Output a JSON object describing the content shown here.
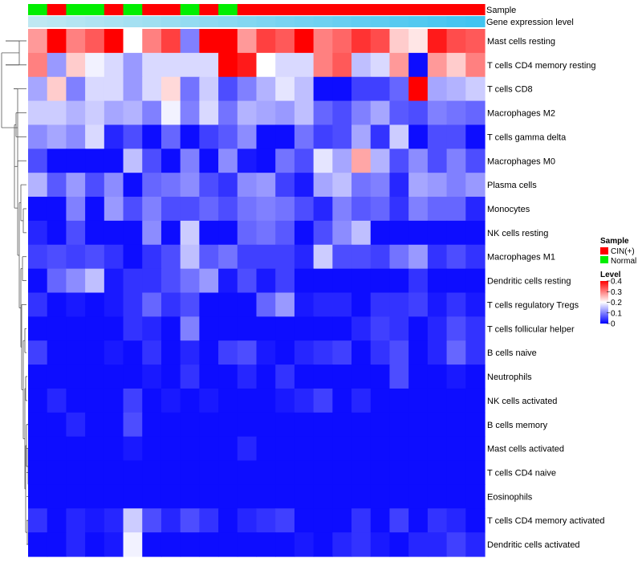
{
  "chart_data": {
    "type": "heatmap",
    "annotation_titles": {
      "sample": "Sample",
      "expression": "Gene expression level"
    },
    "sample_groups": [
      "Normal",
      "CIN(+)",
      "Normal",
      "Normal",
      "CIN(+)",
      "Normal",
      "CIN(+)",
      "CIN(+)",
      "Normal",
      "CIN(+)",
      "Normal",
      "CIN(+)",
      "CIN(+)",
      "CIN(+)",
      "CIN(+)",
      "CIN(+)",
      "CIN(+)",
      "CIN(+)",
      "CIN(+)",
      "CIN(+)",
      "CIN(+)",
      "CIN(+)",
      "CIN(+)",
      "CIN(+)"
    ],
    "expression_gradient": [
      0.0,
      0.04,
      0.09,
      0.13,
      0.17,
      0.22,
      0.26,
      0.3,
      0.35,
      0.39,
      0.43,
      0.48,
      0.52,
      0.57,
      0.61,
      0.65,
      0.7,
      0.74,
      0.78,
      0.83,
      0.87,
      0.91,
      0.96,
      1.0
    ],
    "rows": [
      "Mast cells resting",
      "T cells CD4 memory resting",
      "T cells CD8",
      "Macrophages M2",
      "T cells gamma delta",
      "Macrophages M0",
      "Plasma cells",
      "Monocytes",
      "NK cells resting",
      "Macrophages M1",
      "Dendritic cells resting",
      "T cells regulatory  Tregs",
      "T cells follicular helper",
      "B cells naive",
      "Neutrophils",
      "NK cells activated",
      "B cells memory",
      "Mast cells activated",
      "T cells CD4 naive",
      "Eosinophils",
      "T cells CD4 memory activated",
      "Dendritic cells activated"
    ],
    "values": [
      [
        0.28,
        0.4,
        0.3,
        0.33,
        0.4,
        0.2,
        0.3,
        0.35,
        0.1,
        0.4,
        0.4,
        0.28,
        0.35,
        0.33,
        0.4,
        0.3,
        0.32,
        0.36,
        0.34,
        0.24,
        0.22,
        0.38,
        0.34,
        0.33
      ],
      [
        0.3,
        0.12,
        0.24,
        0.19,
        0.17,
        0.12,
        0.17,
        0.17,
        0.17,
        0.17,
        0.4,
        0.38,
        0.2,
        0.17,
        0.17,
        0.3,
        0.33,
        0.15,
        0.17,
        0.28,
        0.01,
        0.28,
        0.24,
        0.3
      ],
      [
        0.13,
        0.24,
        0.1,
        0.17,
        0.17,
        0.12,
        0.17,
        0.23,
        0.09,
        0.16,
        0.06,
        0.1,
        0.14,
        0.18,
        0.15,
        0.01,
        0.01,
        0.05,
        0.05,
        0.08,
        0.4,
        0.13,
        0.14,
        0.16
      ],
      [
        0.16,
        0.16,
        0.14,
        0.16,
        0.13,
        0.14,
        0.1,
        0.19,
        0.1,
        0.17,
        0.09,
        0.14,
        0.13,
        0.12,
        0.15,
        0.08,
        0.06,
        0.1,
        0.13,
        0.07,
        0.06,
        0.1,
        0.09,
        0.08
      ],
      [
        0.11,
        0.13,
        0.11,
        0.17,
        0.03,
        0.06,
        0.01,
        0.08,
        0.01,
        0.05,
        0.07,
        0.11,
        0.01,
        0.01,
        0.09,
        0.05,
        0.06,
        0.13,
        0.04,
        0.16,
        0.01,
        0.06,
        0.06,
        0.01
      ],
      [
        0.06,
        0.01,
        0.01,
        0.01,
        0.01,
        0.15,
        0.06,
        0.01,
        0.1,
        0.01,
        0.11,
        0.02,
        0.01,
        0.09,
        0.06,
        0.18,
        0.13,
        0.27,
        0.14,
        0.06,
        0.11,
        0.06,
        0.1,
        0.06
      ],
      [
        0.14,
        0.07,
        0.12,
        0.06,
        0.11,
        0.01,
        0.08,
        0.09,
        0.11,
        0.06,
        0.04,
        0.11,
        0.12,
        0.05,
        0.02,
        0.13,
        0.15,
        0.09,
        0.1,
        0.03,
        0.13,
        0.12,
        0.1,
        0.12
      ],
      [
        0.01,
        0.01,
        0.1,
        0.01,
        0.12,
        0.06,
        0.1,
        0.06,
        0.06,
        0.08,
        0.06,
        0.09,
        0.1,
        0.09,
        0.06,
        0.03,
        0.1,
        0.07,
        0.08,
        0.04,
        0.1,
        0.08,
        0.08,
        0.03
      ],
      [
        0.03,
        0.01,
        0.06,
        0.01,
        0.01,
        0.01,
        0.11,
        0.01,
        0.16,
        0.01,
        0.01,
        0.08,
        0.09,
        0.07,
        0.01,
        0.06,
        0.11,
        0.15,
        0.01,
        0.01,
        0.01,
        0.01,
        0.01,
        0.01
      ],
      [
        0.05,
        0.06,
        0.05,
        0.06,
        0.04,
        0.01,
        0.04,
        0.06,
        0.15,
        0.07,
        0.09,
        0.05,
        0.05,
        0.05,
        0.03,
        0.16,
        0.06,
        0.06,
        0.05,
        0.09,
        0.12,
        0.04,
        0.06,
        0.04
      ],
      [
        0.01,
        0.08,
        0.11,
        0.15,
        0.02,
        0.04,
        0.04,
        0.06,
        0.09,
        0.12,
        0.02,
        0.06,
        0.02,
        0.05,
        0.01,
        0.01,
        0.01,
        0.01,
        0.01,
        0.01,
        0.04,
        0.01,
        0.01,
        0.01
      ],
      [
        0.04,
        0.01,
        0.02,
        0.01,
        0.02,
        0.04,
        0.08,
        0.04,
        0.06,
        0.01,
        0.01,
        0.01,
        0.08,
        0.12,
        0.02,
        0.03,
        0.03,
        0.01,
        0.04,
        0.04,
        0.05,
        0.02,
        0.04,
        0.02
      ],
      [
        0.01,
        0.01,
        0.01,
        0.01,
        0.01,
        0.04,
        0.03,
        0.01,
        0.1,
        0.01,
        0.01,
        0.01,
        0.01,
        0.01,
        0.01,
        0.01,
        0.01,
        0.03,
        0.05,
        0.04,
        0.01,
        0.03,
        0.06,
        0.04
      ],
      [
        0.05,
        0.01,
        0.01,
        0.01,
        0.02,
        0.01,
        0.04,
        0.01,
        0.03,
        0.01,
        0.05,
        0.06,
        0.02,
        0.01,
        0.03,
        0.04,
        0.05,
        0.01,
        0.04,
        0.06,
        0.01,
        0.03,
        0.08,
        0.04
      ],
      [
        0.01,
        0.01,
        0.01,
        0.01,
        0.01,
        0.01,
        0.02,
        0.01,
        0.04,
        0.01,
        0.01,
        0.03,
        0.01,
        0.04,
        0.01,
        0.01,
        0.01,
        0.01,
        0.01,
        0.06,
        0.01,
        0.01,
        0.02,
        0.01
      ],
      [
        0.01,
        0.03,
        0.01,
        0.01,
        0.01,
        0.05,
        0.01,
        0.02,
        0.01,
        0.02,
        0.01,
        0.01,
        0.01,
        0.02,
        0.03,
        0.05,
        0.01,
        0.03,
        0.01,
        0.01,
        0.01,
        0.01,
        0.01,
        0.01
      ],
      [
        0.01,
        0.01,
        0.03,
        0.01,
        0.01,
        0.06,
        0.01,
        0.01,
        0.01,
        0.01,
        0.01,
        0.01,
        0.01,
        0.01,
        0.01,
        0.01,
        0.01,
        0.01,
        0.01,
        0.01,
        0.01,
        0.01,
        0.01,
        0.01
      ],
      [
        0.01,
        0.01,
        0.01,
        0.01,
        0.01,
        0.02,
        0.01,
        0.01,
        0.01,
        0.01,
        0.01,
        0.03,
        0.01,
        0.01,
        0.01,
        0.01,
        0.01,
        0.01,
        0.01,
        0.01,
        0.01,
        0.01,
        0.01,
        0.01
      ],
      [
        0.01,
        0.01,
        0.01,
        0.01,
        0.01,
        0.01,
        0.01,
        0.01,
        0.01,
        0.01,
        0.01,
        0.01,
        0.01,
        0.01,
        0.01,
        0.01,
        0.01,
        0.01,
        0.01,
        0.01,
        0.01,
        0.01,
        0.01,
        0.01
      ],
      [
        0.01,
        0.01,
        0.01,
        0.01,
        0.01,
        0.01,
        0.01,
        0.01,
        0.01,
        0.01,
        0.01,
        0.01,
        0.01,
        0.01,
        0.01,
        0.01,
        0.01,
        0.01,
        0.01,
        0.01,
        0.01,
        0.01,
        0.01,
        0.01
      ],
      [
        0.04,
        0.01,
        0.03,
        0.02,
        0.03,
        0.16,
        0.06,
        0.03,
        0.06,
        0.04,
        0.01,
        0.03,
        0.04,
        0.05,
        0.01,
        0.01,
        0.01,
        0.04,
        0.01,
        0.05,
        0.01,
        0.04,
        0.03,
        0.01
      ],
      [
        0.01,
        0.01,
        0.03,
        0.01,
        0.02,
        0.19,
        0.01,
        0.01,
        0.01,
        0.01,
        0.01,
        0.01,
        0.01,
        0.01,
        0.02,
        0.01,
        0.03,
        0.04,
        0.02,
        0.01,
        0.03,
        0.03,
        0.05,
        0.03
      ]
    ],
    "legend": {
      "sample_title": "Sample",
      "sample_entries": [
        {
          "label": "CIN(+)",
          "color": "#ff0000"
        },
        {
          "label": "Normal",
          "color": "#00ee00"
        }
      ],
      "level_title": "Level",
      "level_ticks": [
        "0.4",
        "0.3",
        "0.2",
        "0.1",
        "0"
      ],
      "level_tick_values": [
        0.4,
        0.3,
        0.2,
        0.1,
        0
      ]
    },
    "color_scale": {
      "low": "#0000ff",
      "mid": "#ffffff",
      "high": "#ff0000",
      "min": 0,
      "mid_value": 0.2,
      "max": 0.4
    },
    "expression_colors": {
      "from": "#bfe8f2",
      "to": "#42c4f0"
    },
    "has_row_dendrogram": true
  }
}
